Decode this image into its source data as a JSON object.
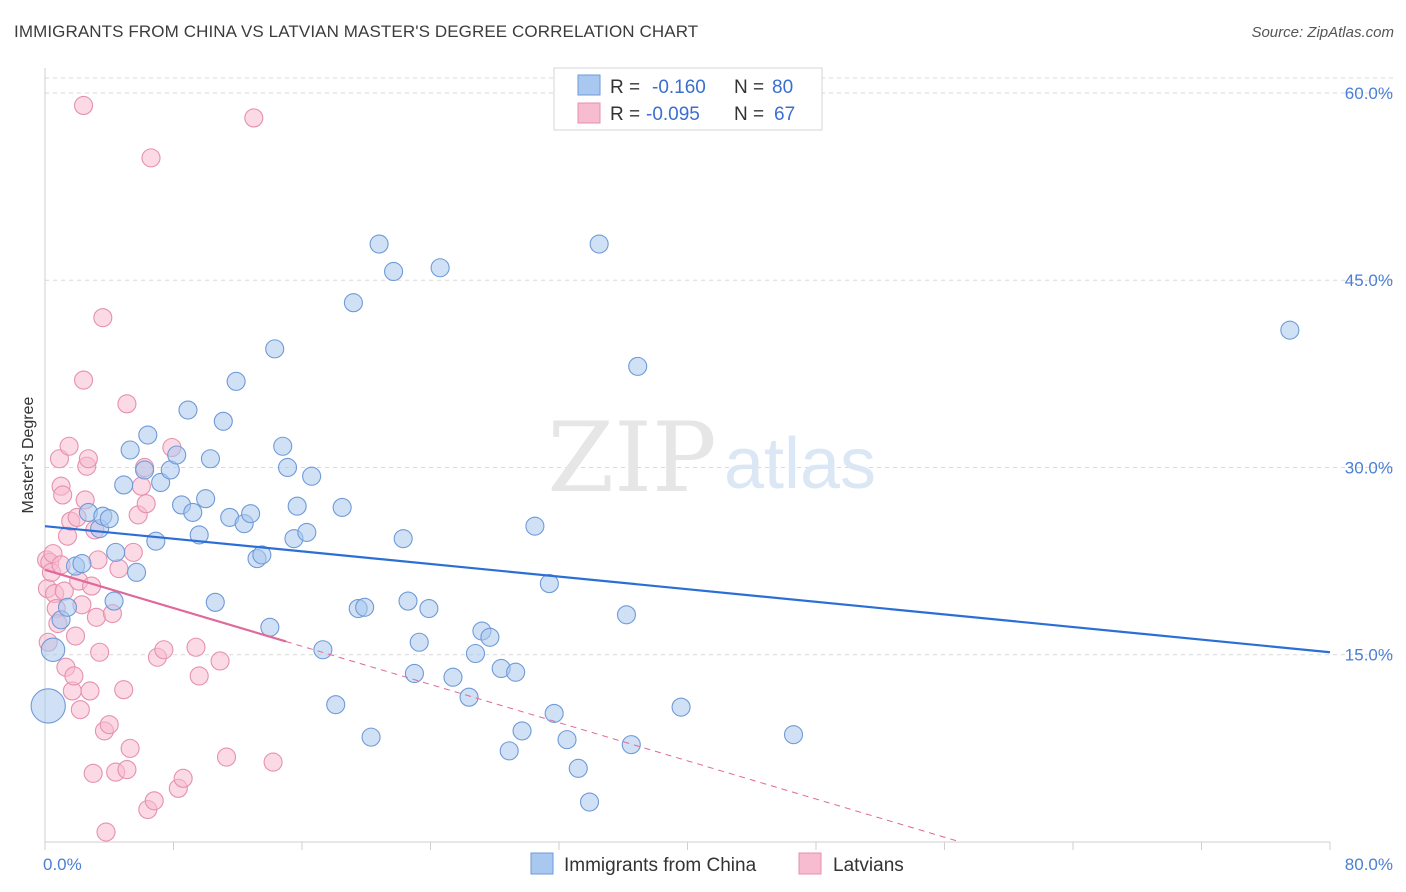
{
  "title": "IMMIGRANTS FROM CHINA VS LATVIAN MASTER'S DEGREE CORRELATION CHART",
  "source": "Source: ZipAtlas.com",
  "watermark": {
    "zip": "ZIP",
    "atlas": "atlas"
  },
  "colors": {
    "blue_fill": "#a9c8ef",
    "blue_stroke": "#6f9ad8",
    "blue_line": "#2b6fd6",
    "pink_fill": "#f7bcd0",
    "pink_stroke": "#e690b0",
    "pink_line": "#e0689a",
    "grid": "#d9d9d9",
    "tick_text": "#4a7fd4"
  },
  "legend": {
    "rows": [
      {
        "r_label": "R =",
        "r_value": "-0.160",
        "n_label": "N =",
        "n_value": "80",
        "series": "blue"
      },
      {
        "r_label": "R =",
        "r_value": "-0.095",
        "n_label": "N =",
        "n_value": "67",
        "series": "pink"
      }
    ]
  },
  "chart_data": {
    "type": "scatter",
    "title": "IMMIGRANTS FROM CHINA VS LATVIAN MASTER'S DEGREE CORRELATION CHART",
    "xlabel": "",
    "ylabel": "Master's Degree",
    "xlim": [
      0,
      80
    ],
    "ylim": [
      0,
      62
    ],
    "x_tick_labels": [
      "0.0%",
      "80.0%"
    ],
    "y_ticks": [
      15,
      30,
      45,
      60
    ],
    "y_tick_labels": [
      "15.0%",
      "30.0%",
      "45.0%",
      "60.0%"
    ],
    "series": [
      {
        "name": "Immigrants from China",
        "color": "blue",
        "trend": {
          "x0": 0,
          "y0": 25.3,
          "x1": 80,
          "y1": 15.2,
          "dash_from": null
        },
        "points": [
          [
            0.2,
            10.9,
            1.9
          ],
          [
            0.5,
            15.4,
            1.3
          ],
          [
            1.0,
            17.8,
            1
          ],
          [
            1.4,
            18.8,
            1
          ],
          [
            1.9,
            22.1,
            1
          ],
          [
            2.3,
            22.3,
            1
          ],
          [
            2.7,
            26.4,
            1
          ],
          [
            3.4,
            25.1,
            1
          ],
          [
            3.6,
            26.1,
            1
          ],
          [
            4.0,
            25.9,
            1
          ],
          [
            4.3,
            19.3,
            1
          ],
          [
            4.4,
            23.2,
            1
          ],
          [
            4.9,
            28.6,
            1
          ],
          [
            5.3,
            31.4,
            1
          ],
          [
            5.7,
            21.6,
            1
          ],
          [
            6.2,
            29.8,
            1
          ],
          [
            6.4,
            32.6,
            1
          ],
          [
            6.9,
            24.1,
            1
          ],
          [
            7.2,
            28.8,
            1
          ],
          [
            7.8,
            29.8,
            1
          ],
          [
            8.2,
            31.0,
            1
          ],
          [
            8.5,
            27.0,
            1
          ],
          [
            8.9,
            34.6,
            1
          ],
          [
            9.2,
            26.4,
            1
          ],
          [
            9.6,
            24.6,
            1
          ],
          [
            10.0,
            27.5,
            1
          ],
          [
            10.3,
            30.7,
            1
          ],
          [
            10.6,
            19.2,
            1
          ],
          [
            11.1,
            33.7,
            1
          ],
          [
            11.5,
            26.0,
            1
          ],
          [
            11.9,
            36.9,
            1
          ],
          [
            12.4,
            25.5,
            1
          ],
          [
            12.8,
            26.3,
            1
          ],
          [
            13.2,
            22.7,
            1
          ],
          [
            13.5,
            23.0,
            1
          ],
          [
            14.0,
            17.2,
            1
          ],
          [
            14.3,
            39.5,
            1
          ],
          [
            14.8,
            31.7,
            1
          ],
          [
            15.1,
            30.0,
            1
          ],
          [
            15.5,
            24.3,
            1
          ],
          [
            15.7,
            26.9,
            1
          ],
          [
            16.3,
            24.8,
            1
          ],
          [
            16.6,
            29.3,
            1
          ],
          [
            17.3,
            15.4,
            1
          ],
          [
            18.1,
            11.0,
            1
          ],
          [
            18.5,
            26.8,
            1
          ],
          [
            19.2,
            43.2,
            1
          ],
          [
            19.5,
            18.7,
            1
          ],
          [
            19.9,
            18.8,
            1
          ],
          [
            20.3,
            8.4,
            1
          ],
          [
            20.8,
            47.9,
            1
          ],
          [
            21.7,
            45.7,
            1
          ],
          [
            22.3,
            24.3,
            1
          ],
          [
            22.6,
            19.3,
            1
          ],
          [
            23.0,
            13.5,
            1
          ],
          [
            23.3,
            16.0,
            1
          ],
          [
            23.9,
            18.7,
            1
          ],
          [
            24.6,
            46.0,
            1
          ],
          [
            25.4,
            13.2,
            1
          ],
          [
            26.4,
            11.6,
            1
          ],
          [
            26.8,
            15.1,
            1
          ],
          [
            27.2,
            16.9,
            1
          ],
          [
            27.7,
            16.4,
            1
          ],
          [
            28.4,
            13.9,
            1
          ],
          [
            28.9,
            7.3,
            1
          ],
          [
            29.3,
            13.6,
            1
          ],
          [
            29.7,
            8.9,
            1
          ],
          [
            30.5,
            25.3,
            1
          ],
          [
            31.4,
            20.7,
            1
          ],
          [
            31.7,
            10.3,
            1
          ],
          [
            32.5,
            8.2,
            1
          ],
          [
            33.2,
            5.9,
            1
          ],
          [
            33.9,
            3.2,
            1
          ],
          [
            34.5,
            47.9,
            1
          ],
          [
            36.2,
            18.2,
            1
          ],
          [
            36.9,
            38.1,
            1
          ],
          [
            36.5,
            7.8,
            1
          ],
          [
            39.6,
            10.8,
            1
          ],
          [
            46.6,
            8.6,
            1
          ],
          [
            77.5,
            41.0,
            1
          ]
        ]
      },
      {
        "name": "Latvians",
        "color": "pink",
        "trend": {
          "x0": 0,
          "y0": 21.8,
          "x1": 57,
          "y1": 0,
          "dash_from": 15.0
        },
        "points": [
          [
            0.1,
            22.6,
            1
          ],
          [
            0.15,
            20.3,
            1
          ],
          [
            0.2,
            16.0,
            1
          ],
          [
            0.3,
            22.4,
            1
          ],
          [
            0.4,
            21.6,
            1
          ],
          [
            0.5,
            23.1,
            1
          ],
          [
            0.6,
            19.9,
            1
          ],
          [
            0.7,
            18.7,
            1
          ],
          [
            0.8,
            17.5,
            1
          ],
          [
            0.9,
            30.7,
            1
          ],
          [
            1.0,
            28.5,
            1
          ],
          [
            1.1,
            27.8,
            1
          ],
          [
            1.2,
            20.1,
            1
          ],
          [
            1.3,
            14.0,
            1
          ],
          [
            1.4,
            24.5,
            1
          ],
          [
            1.5,
            31.7,
            1
          ],
          [
            1.6,
            25.7,
            1
          ],
          [
            1.7,
            12.1,
            1
          ],
          [
            1.8,
            13.3,
            1
          ],
          [
            1.9,
            16.5,
            1
          ],
          [
            2.0,
            26.0,
            1
          ],
          [
            2.1,
            20.9,
            1
          ],
          [
            2.2,
            10.6,
            1
          ],
          [
            2.3,
            19.0,
            1
          ],
          [
            2.4,
            37.0,
            1
          ],
          [
            2.5,
            27.4,
            1
          ],
          [
            2.6,
            30.1,
            1
          ],
          [
            2.7,
            30.7,
            1
          ],
          [
            2.8,
            12.1,
            1
          ],
          [
            2.9,
            20.5,
            1
          ],
          [
            3.0,
            5.5,
            1
          ],
          [
            3.1,
            25.0,
            1
          ],
          [
            3.2,
            18.0,
            1
          ],
          [
            3.3,
            22.6,
            1
          ],
          [
            3.4,
            15.2,
            1
          ],
          [
            3.6,
            42.0,
            1
          ],
          [
            3.7,
            8.9,
            1
          ],
          [
            3.8,
            0.8,
            1
          ],
          [
            4.0,
            9.4,
            1
          ],
          [
            4.2,
            18.3,
            1
          ],
          [
            4.4,
            5.6,
            1
          ],
          [
            4.6,
            21.9,
            1
          ],
          [
            4.9,
            12.2,
            1
          ],
          [
            5.1,
            35.1,
            1
          ],
          [
            5.3,
            7.5,
            1
          ],
          [
            5.5,
            23.2,
            1
          ],
          [
            5.8,
            26.2,
            1
          ],
          [
            6.0,
            28.5,
            1
          ],
          [
            6.2,
            30.0,
            1
          ],
          [
            6.3,
            27.1,
            1
          ],
          [
            6.4,
            2.6,
            1
          ],
          [
            6.6,
            54.8,
            1
          ],
          [
            6.8,
            3.3,
            1
          ],
          [
            7.0,
            14.8,
            1
          ],
          [
            7.4,
            15.4,
            1
          ],
          [
            7.9,
            31.6,
            1
          ],
          [
            8.3,
            4.3,
            1
          ],
          [
            8.6,
            5.1,
            1
          ],
          [
            9.4,
            15.6,
            1
          ],
          [
            9.6,
            13.3,
            1
          ],
          [
            10.9,
            14.5,
            1
          ],
          [
            11.3,
            6.8,
            1
          ],
          [
            13.0,
            58.0,
            1
          ],
          [
            14.2,
            6.4,
            1
          ],
          [
            2.4,
            59.0,
            1
          ],
          [
            1.0,
            22.2,
            1
          ],
          [
            5.1,
            5.8,
            1
          ]
        ]
      }
    ],
    "legend": [
      "Immigrants from China",
      "Latvians"
    ],
    "legend_position": "bottom-center"
  }
}
